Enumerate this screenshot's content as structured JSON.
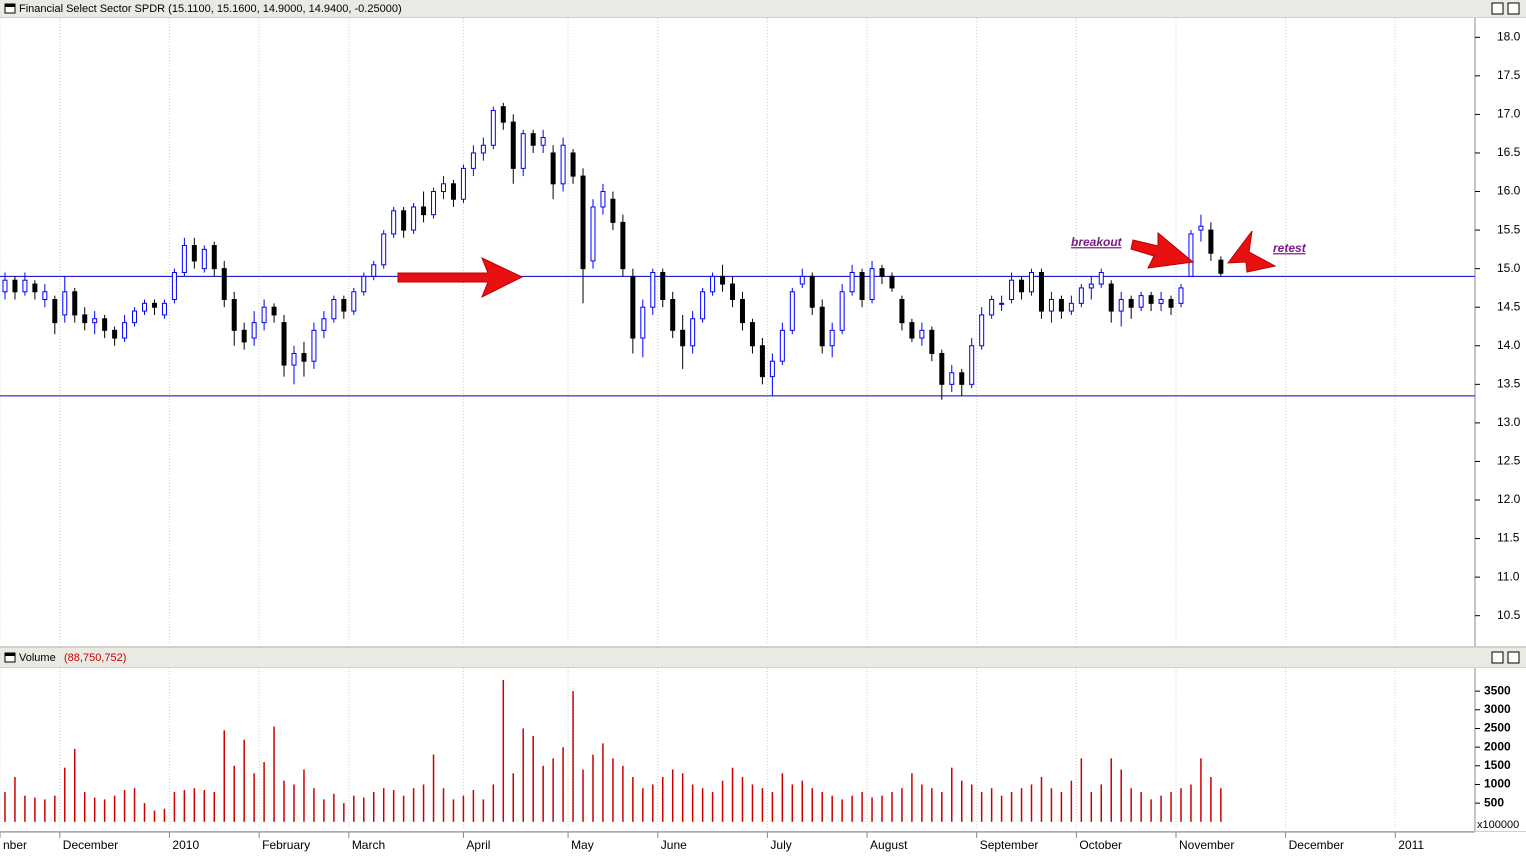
{
  "chart_data": {
    "type": "candlestick",
    "title": "Financial Select Sector SPDR (15.1100, 15.1600, 14.9000, 14.9400, -0.25000)",
    "up_color": "#0000ff",
    "down_color": "#000000",
    "line_color": "#0000cc",
    "ylim": [
      10.12,
      18.25
    ],
    "yticks": [
      {
        "value": 10.5,
        "label": "10.5"
      },
      {
        "value": 11,
        "label": "11.0"
      },
      {
        "value": 11.5,
        "label": "11.5"
      },
      {
        "value": 12,
        "label": "12.0"
      },
      {
        "value": 12.5,
        "label": "12.5"
      },
      {
        "value": 13,
        "label": "13.0"
      },
      {
        "value": 13.5,
        "label": "13.5"
      },
      {
        "value": 14,
        "label": "14.0"
      },
      {
        "value": 14.5,
        "label": "14.5"
      },
      {
        "value": 15,
        "label": "15.0"
      },
      {
        "value": 15.5,
        "label": "15.5"
      },
      {
        "value": 16,
        "label": "16.0"
      },
      {
        "value": 16.5,
        "label": "16.5"
      },
      {
        "value": 17,
        "label": "17.0"
      },
      {
        "value": 17.5,
        "label": "17.5"
      },
      {
        "value": 18,
        "label": "18.0"
      }
    ],
    "xlim": [
      0,
      148
    ],
    "xticks": [
      {
        "value": 0,
        "label": "nber"
      },
      {
        "value": 6,
        "label": "December"
      },
      {
        "value": 17,
        "label": "2010"
      },
      {
        "value": 26,
        "label": "February"
      },
      {
        "value": 35,
        "label": "March"
      },
      {
        "value": 46.5,
        "label": "April"
      },
      {
        "value": 57,
        "label": "May"
      },
      {
        "value": 66,
        "label": "June"
      },
      {
        "value": 77,
        "label": "July"
      },
      {
        "value": 87,
        "label": "August"
      },
      {
        "value": 98,
        "label": "September"
      },
      {
        "value": 108,
        "label": "October"
      },
      {
        "value": 118,
        "label": "November"
      },
      {
        "value": 129,
        "label": "December"
      },
      {
        "value": 140,
        "label": "2011"
      }
    ],
    "hlines": [
      14.9,
      13.35
    ],
    "annotations": [
      "breakout",
      "retest"
    ],
    "candles": [
      [
        14.7,
        14.95,
        14.6,
        14.85
      ],
      [
        14.85,
        14.9,
        14.6,
        14.7
      ],
      [
        14.7,
        14.95,
        14.65,
        14.85
      ],
      [
        14.8,
        14.85,
        14.6,
        14.7
      ],
      [
        14.6,
        14.8,
        14.5,
        14.7
      ],
      [
        14.6,
        14.65,
        14.15,
        14.3
      ],
      [
        14.4,
        14.9,
        14.3,
        14.7
      ],
      [
        14.7,
        14.75,
        14.3,
        14.4
      ],
      [
        14.4,
        14.5,
        14.2,
        14.3
      ],
      [
        14.3,
        14.45,
        14.15,
        14.35
      ],
      [
        14.35,
        14.4,
        14.1,
        14.2
      ],
      [
        14.2,
        14.25,
        14.0,
        14.1
      ],
      [
        14.1,
        14.4,
        14.05,
        14.3
      ],
      [
        14.3,
        14.5,
        14.25,
        14.45
      ],
      [
        14.45,
        14.6,
        14.4,
        14.55
      ],
      [
        14.55,
        14.6,
        14.4,
        14.5
      ],
      [
        14.4,
        14.6,
        14.35,
        14.55
      ],
      [
        14.6,
        15.0,
        14.55,
        14.95
      ],
      [
        14.95,
        15.4,
        14.9,
        15.3
      ],
      [
        15.3,
        15.4,
        15.0,
        15.1
      ],
      [
        15.0,
        15.3,
        14.95,
        15.25
      ],
      [
        15.3,
        15.35,
        14.9,
        15.0
      ],
      [
        15.0,
        15.1,
        14.5,
        14.6
      ],
      [
        14.6,
        14.7,
        14.0,
        14.2
      ],
      [
        14.2,
        14.3,
        13.95,
        14.05
      ],
      [
        14.1,
        14.45,
        14.0,
        14.3
      ],
      [
        14.3,
        14.6,
        14.2,
        14.5
      ],
      [
        14.5,
        14.55,
        14.3,
        14.4
      ],
      [
        14.3,
        14.4,
        13.6,
        13.75
      ],
      [
        13.75,
        14.0,
        13.5,
        13.9
      ],
      [
        13.9,
        14.05,
        13.6,
        13.8
      ],
      [
        13.8,
        14.3,
        13.7,
        14.2
      ],
      [
        14.2,
        14.45,
        14.1,
        14.35
      ],
      [
        14.35,
        14.65,
        14.3,
        14.6
      ],
      [
        14.6,
        14.65,
        14.35,
        14.45
      ],
      [
        14.45,
        14.75,
        14.4,
        14.7
      ],
      [
        14.7,
        14.95,
        14.65,
        14.9
      ],
      [
        14.9,
        15.1,
        14.85,
        15.05
      ],
      [
        15.05,
        15.5,
        15.0,
        15.45
      ],
      [
        15.45,
        15.8,
        15.4,
        15.75
      ],
      [
        15.75,
        15.8,
        15.4,
        15.5
      ],
      [
        15.5,
        15.85,
        15.45,
        15.8
      ],
      [
        15.8,
        16.0,
        15.6,
        15.7
      ],
      [
        15.7,
        16.05,
        15.65,
        16.0
      ],
      [
        16.0,
        16.2,
        15.9,
        16.1
      ],
      [
        16.1,
        16.15,
        15.8,
        15.9
      ],
      [
        15.9,
        16.35,
        15.85,
        16.3
      ],
      [
        16.3,
        16.6,
        16.2,
        16.5
      ],
      [
        16.5,
        16.7,
        16.4,
        16.6
      ],
      [
        16.6,
        17.1,
        16.55,
        17.05
      ],
      [
        17.1,
        17.15,
        16.8,
        16.9
      ],
      [
        16.9,
        17.0,
        16.1,
        16.3
      ],
      [
        16.3,
        16.8,
        16.2,
        16.75
      ],
      [
        16.75,
        16.8,
        16.5,
        16.6
      ],
      [
        16.6,
        16.8,
        16.5,
        16.7
      ],
      [
        16.5,
        16.6,
        15.9,
        16.1
      ],
      [
        16.1,
        16.7,
        16.0,
        16.6
      ],
      [
        16.5,
        16.55,
        16.1,
        16.2
      ],
      [
        16.2,
        16.3,
        14.55,
        15.0
      ],
      [
        15.1,
        15.9,
        15.0,
        15.8
      ],
      [
        15.8,
        16.1,
        15.7,
        16.0
      ],
      [
        15.9,
        16.0,
        15.5,
        15.6
      ],
      [
        15.6,
        15.7,
        14.9,
        15.0
      ],
      [
        14.9,
        15.0,
        13.9,
        14.1
      ],
      [
        14.1,
        14.6,
        13.85,
        14.5
      ],
      [
        14.5,
        15.0,
        14.4,
        14.95
      ],
      [
        14.95,
        15.0,
        14.5,
        14.6
      ],
      [
        14.6,
        14.7,
        14.1,
        14.2
      ],
      [
        14.2,
        14.4,
        13.7,
        14.0
      ],
      [
        14.0,
        14.45,
        13.9,
        14.35
      ],
      [
        14.35,
        14.75,
        14.3,
        14.7
      ],
      [
        14.7,
        14.95,
        14.65,
        14.9
      ],
      [
        14.9,
        15.05,
        14.7,
        14.8
      ],
      [
        14.8,
        14.9,
        14.5,
        14.6
      ],
      [
        14.6,
        14.7,
        14.2,
        14.3
      ],
      [
        14.3,
        14.35,
        13.9,
        14.0
      ],
      [
        14.0,
        14.1,
        13.5,
        13.6
      ],
      [
        13.6,
        13.9,
        13.35,
        13.8
      ],
      [
        13.8,
        14.3,
        13.75,
        14.2
      ],
      [
        14.2,
        14.75,
        14.15,
        14.7
      ],
      [
        14.8,
        15.0,
        14.75,
        14.9
      ],
      [
        14.9,
        14.95,
        14.4,
        14.5
      ],
      [
        14.5,
        14.6,
        13.9,
        14.0
      ],
      [
        14.0,
        14.3,
        13.85,
        14.2
      ],
      [
        14.2,
        14.8,
        14.15,
        14.7
      ],
      [
        14.7,
        15.05,
        14.65,
        14.95
      ],
      [
        14.95,
        15.0,
        14.5,
        14.6
      ],
      [
        14.6,
        15.1,
        14.55,
        15.0
      ],
      [
        15.0,
        15.05,
        14.8,
        14.9
      ],
      [
        14.9,
        14.95,
        14.7,
        14.75
      ],
      [
        14.6,
        14.65,
        14.2,
        14.3
      ],
      [
        14.3,
        14.35,
        14.05,
        14.1
      ],
      [
        14.1,
        14.3,
        14.0,
        14.2
      ],
      [
        14.2,
        14.25,
        13.8,
        13.9
      ],
      [
        13.9,
        13.95,
        13.3,
        13.5
      ],
      [
        13.5,
        13.75,
        13.4,
        13.65
      ],
      [
        13.65,
        13.7,
        13.35,
        13.5
      ],
      [
        13.5,
        14.1,
        13.45,
        14.0
      ],
      [
        14.0,
        14.5,
        13.95,
        14.4
      ],
      [
        14.4,
        14.65,
        14.35,
        14.6
      ],
      [
        14.55,
        14.65,
        14.45,
        14.55
      ],
      [
        14.6,
        14.95,
        14.55,
        14.85
      ],
      [
        14.85,
        14.9,
        14.6,
        14.7
      ],
      [
        14.7,
        15.0,
        14.65,
        14.95
      ],
      [
        14.95,
        15.0,
        14.35,
        14.45
      ],
      [
        14.45,
        14.7,
        14.3,
        14.6
      ],
      [
        14.6,
        14.65,
        14.35,
        14.45
      ],
      [
        14.45,
        14.65,
        14.4,
        14.55
      ],
      [
        14.55,
        14.8,
        14.5,
        14.75
      ],
      [
        14.75,
        14.9,
        14.6,
        14.8
      ],
      [
        14.8,
        15.0,
        14.75,
        14.95
      ],
      [
        14.8,
        14.85,
        14.3,
        14.45
      ],
      [
        14.45,
        14.7,
        14.25,
        14.6
      ],
      [
        14.6,
        14.65,
        14.35,
        14.5
      ],
      [
        14.5,
        14.7,
        14.45,
        14.65
      ],
      [
        14.65,
        14.7,
        14.45,
        14.55
      ],
      [
        14.55,
        14.7,
        14.45,
        14.6
      ],
      [
        14.6,
        14.65,
        14.4,
        14.5
      ],
      [
        14.55,
        14.8,
        14.5,
        14.75
      ],
      [
        14.9,
        15.5,
        14.9,
        15.45
      ],
      [
        15.5,
        15.7,
        15.35,
        15.55
      ],
      [
        15.5,
        15.6,
        15.1,
        15.2
      ],
      [
        15.11,
        15.16,
        14.9,
        14.94
      ]
    ],
    "volume": {
      "title": "Volume",
      "value_label": "(88,750,752)",
      "unit_label": "x100000",
      "color": "#cc0000",
      "ylim": [
        -220,
        4120
      ],
      "yticks": [
        500,
        1000,
        1500,
        2000,
        2500,
        3000,
        3500
      ],
      "values": [
        800,
        1200,
        700,
        650,
        600,
        700,
        1450,
        1950,
        800,
        650,
        600,
        700,
        850,
        900,
        500,
        300,
        350,
        800,
        850,
        900,
        850,
        800,
        2450,
        1500,
        2200,
        1300,
        1600,
        2550,
        1100,
        1000,
        1400,
        900,
        600,
        750,
        500,
        700,
        650,
        800,
        900,
        850,
        700,
        900,
        1000,
        1800,
        900,
        600,
        700,
        850,
        600,
        1000,
        3800,
        1300,
        2500,
        2300,
        1500,
        1700,
        2000,
        3500,
        1400,
        1800,
        2100,
        1700,
        1500,
        1200,
        900,
        1000,
        1200,
        1400,
        1300,
        1000,
        900,
        800,
        1100,
        1450,
        1200,
        1000,
        900,
        800,
        1300,
        1000,
        1100,
        900,
        800,
        700,
        600,
        700,
        800,
        650,
        700,
        800,
        900,
        1300,
        1000,
        900,
        800,
        1450,
        1100,
        1000,
        800,
        900,
        700,
        800,
        900,
        1000,
        1200,
        900,
        800,
        1100,
        1700,
        800,
        1000,
        1700,
        1400,
        900,
        800,
        600,
        700,
        800,
        900,
        1000,
        1700,
        1200,
        900
      ]
    }
  }
}
